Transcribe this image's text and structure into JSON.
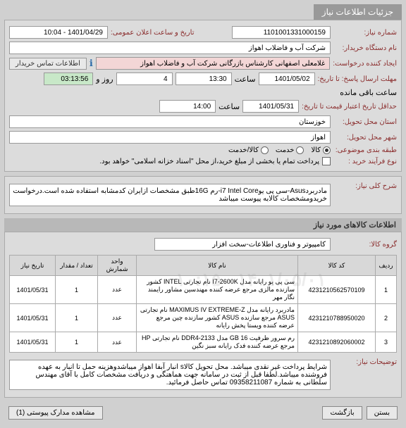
{
  "tab": {
    "title": "جزئیات اطلاعات نیاز"
  },
  "fields": {
    "need_no": {
      "label": "شماره نیاز:",
      "value": "1101001331000159"
    },
    "announce_date": {
      "label": "تاریخ و ساعت اعلان عمومی:",
      "value": "1401/04/29 - 10:04"
    },
    "buyer_org": {
      "label": "نام دستگاه خریدار:",
      "value": "شرکت آب و فاضلاب اهواز"
    },
    "requester": {
      "label": "ایجاد کننده درخواست:",
      "value": "غلامعلی اصفهانی کارشناس بازرگانی شرکت آب و فاضلاب اهواز"
    },
    "buyer_contact_btn": "اطلاعات تماس خریدار",
    "deadline": {
      "label": "مهلت ارسال پاسخ: تا تاریخ:",
      "date": "1401/05/02",
      "hour_label": "ساعت",
      "hour": "13:30",
      "sep": "و",
      "days": "4",
      "days_label": "روز و",
      "remain_label": "ساعت باقی مانده",
      "remain": "03:13:56"
    },
    "validity": {
      "label": "حداقل تاریخ اعتبار قیمت تا تاریخ:",
      "date": "1401/05/31",
      "hour_label": "ساعت",
      "hour": "14:00"
    },
    "province": {
      "label": "استان محل تحویل:",
      "value": "خوزستان"
    },
    "city": {
      "label": "شهر محل تحویل:",
      "value": "اهواز"
    },
    "category": {
      "label": "طبقه بندی موضوعی:",
      "options": [
        "کالا",
        "خدمت",
        "کالا/خدمت"
      ],
      "selected": 0
    },
    "buy_process": {
      "label": "نوع فرآیند خرید :",
      "note": "پرداخت تمام یا بخشی از مبلغ خرید،از محل \"اسناد خزانه اسلامی\" خواهد بود."
    }
  },
  "need_desc": {
    "label": "شرح کلی نیاز:",
    "text": "مادربردAsus-سی پی یوi7 Intel Core-رم 16Gطبق مشخصات ازایران کدمشابه استفاده شده است.درخواست خریدومشخصات کالابه پیوست میباشد"
  },
  "goods_section": {
    "title": "اطلاعات کالاهای مورد نیاز",
    "group_label": "گروه کالا:",
    "group_value": "کامپیوتر و فناوری اطلاعات-سخت افزار"
  },
  "table": {
    "cols": [
      "ردیف",
      "کد کالا",
      "نام کالا",
      "واحد شمارش",
      "تعداد / مقدار",
      "تاریخ نیاز"
    ],
    "rows": [
      [
        "1",
        "4231210562570109",
        "سی پی یو رایانه مدل I7-2600K نام تجارتی INTEL کشور سازنده مالزی مرجع عرضه کننده مهندسین مشاور رایمند نگار مهر",
        "عدد",
        "1",
        "1401/05/31"
      ],
      [
        "2",
        "4231210788950020",
        "مادربرد رایانه مدل MAXIMUS IV EXTREME-Z نام تجارتی ASUS مرجع سازنده ASUS کشور سازنده چین مرجع عرضه کننده ویستا پخش رایانه",
        "عدد",
        "1",
        "1401/05/31"
      ],
      [
        "3",
        "4231210892060002",
        "رم سرور ظرفیت GB 16 مدل DDR4-2133 نام تجارتی HP مرجع عرضه کننده فدک رایانه سبز نگین",
        "عدد",
        "1",
        "1401/05/31"
      ]
    ],
    "watermark": "۱۴۰۱/۰۵/۰۱ - ۱۰:۱۵"
  },
  "notes": {
    "label": "توضیحات نیاز:",
    "text": "شرایط پرداخت غیر نقدی میباشد. محل تحویل کالاs انبار آبفا اهواز میباشدوهزینه حمل تا انبار به عهده فروشنده میباشد.لطفا قبل از ثبت در سامانه جهت هماهنگی و دریافت مشخصات کامل با آقای مهندس سلطانی به شماره 09358211087 تماس حاصل فرمائید."
  },
  "footer": {
    "close": "بستن",
    "back": "بازگشت",
    "attach": "مشاهده مدارک پیوستی (1)"
  }
}
